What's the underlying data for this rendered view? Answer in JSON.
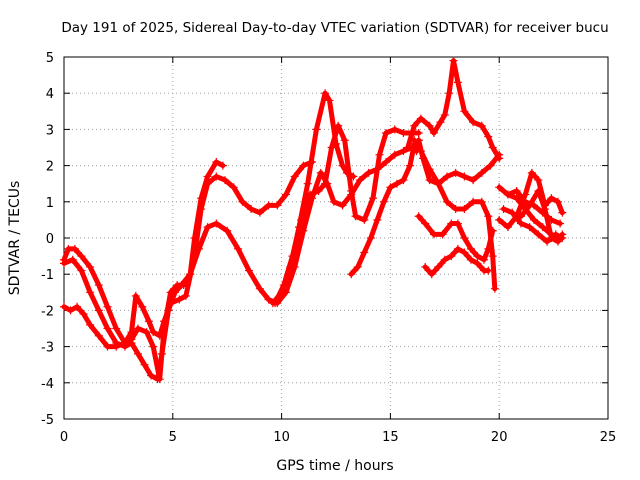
{
  "chart_data": {
    "type": "scatter",
    "title": "Day 191 of 2025, Sidereal Day-to-day VTEC variation (SDTVAR) for receiver bucu",
    "xlabel": "GPS time / hours",
    "ylabel": "SDTVAR / TECUs",
    "xlim": [
      0,
      25
    ],
    "ylim": [
      -5,
      5
    ],
    "x_ticks": [
      0,
      5,
      10,
      15,
      20,
      25
    ],
    "y_ticks": [
      -5,
      -4,
      -3,
      -2,
      -1,
      0,
      1,
      2,
      3,
      4,
      5
    ],
    "grid": true,
    "marker": "+",
    "color": "#ff0000",
    "series": [
      {
        "points": [
          [
            0.0,
            -0.6
          ],
          [
            0.2,
            -0.3
          ],
          [
            0.5,
            -0.3
          ],
          [
            0.8,
            -0.5
          ],
          [
            1.2,
            -0.8
          ],
          [
            1.6,
            -1.3
          ],
          [
            2.0,
            -1.9
          ],
          [
            2.4,
            -2.5
          ],
          [
            2.8,
            -2.9
          ],
          [
            3.1,
            -2.8
          ],
          [
            3.4,
            -2.5
          ],
          [
            3.8,
            -2.6
          ],
          [
            4.1,
            -3.0
          ],
          [
            4.4,
            -3.9
          ],
          [
            4.6,
            -2.5
          ],
          [
            4.9,
            -1.5
          ],
          [
            5.2,
            -1.3
          ],
          [
            5.5,
            -1.3
          ],
          [
            5.8,
            -1.0
          ],
          [
            6.0,
            0.0
          ],
          [
            6.3,
            1.1
          ],
          [
            6.6,
            1.7
          ],
          [
            7.0,
            2.1
          ],
          [
            7.3,
            2.0
          ]
        ]
      },
      {
        "points": [
          [
            0.0,
            -1.9
          ],
          [
            0.3,
            -2.0
          ],
          [
            0.6,
            -1.9
          ],
          [
            0.9,
            -2.1
          ],
          [
            1.2,
            -2.4
          ],
          [
            1.6,
            -2.7
          ],
          [
            2.0,
            -3.0
          ],
          [
            2.4,
            -3.0
          ],
          [
            2.8,
            -2.9
          ],
          [
            3.1,
            -2.6
          ],
          [
            3.3,
            -1.6
          ],
          [
            3.6,
            -1.9
          ],
          [
            3.9,
            -2.3
          ],
          [
            4.1,
            -2.6
          ],
          [
            4.4,
            -2.7
          ],
          [
            4.6,
            -2.3
          ],
          [
            4.9,
            -1.8
          ],
          [
            5.3,
            -1.7
          ],
          [
            5.6,
            -1.6
          ],
          [
            6.0,
            -0.5
          ],
          [
            6.3,
            0.8
          ],
          [
            6.6,
            1.5
          ],
          [
            7.0,
            1.7
          ],
          [
            7.4,
            1.6
          ],
          [
            7.8,
            1.4
          ],
          [
            8.2,
            1.0
          ],
          [
            8.6,
            0.8
          ],
          [
            9.0,
            0.7
          ],
          [
            9.4,
            0.9
          ],
          [
            9.8,
            0.9
          ],
          [
            10.2,
            1.2
          ],
          [
            10.6,
            1.7
          ],
          [
            11.0,
            2.0
          ],
          [
            11.4,
            2.1
          ]
        ]
      },
      {
        "points": [
          [
            0.0,
            -0.7
          ],
          [
            0.4,
            -0.6
          ],
          [
            0.8,
            -0.9
          ],
          [
            1.2,
            -1.5
          ],
          [
            1.6,
            -2.0
          ],
          [
            2.0,
            -2.5
          ],
          [
            2.4,
            -2.9
          ],
          [
            2.8,
            -3.0
          ],
          [
            3.1,
            -2.9
          ],
          [
            3.4,
            -3.2
          ],
          [
            3.7,
            -3.5
          ],
          [
            4.0,
            -3.8
          ],
          [
            4.3,
            -3.9
          ],
          [
            4.5,
            -3.2
          ],
          [
            4.8,
            -2.0
          ],
          [
            5.1,
            -1.5
          ],
          [
            5.4,
            -1.3
          ],
          [
            5.8,
            -1.0
          ],
          [
            6.2,
            -0.3
          ],
          [
            6.6,
            0.3
          ],
          [
            7.0,
            0.4
          ],
          [
            7.5,
            0.2
          ],
          [
            8.0,
            -0.3
          ],
          [
            8.5,
            -0.9
          ],
          [
            9.0,
            -1.4
          ],
          [
            9.4,
            -1.7
          ],
          [
            9.8,
            -1.8
          ],
          [
            10.2,
            -1.5
          ],
          [
            10.6,
            -0.8
          ],
          [
            11.0,
            0.2
          ],
          [
            11.4,
            1.1
          ],
          [
            11.8,
            1.8
          ],
          [
            12.1,
            1.5
          ],
          [
            12.4,
            1.0
          ],
          [
            12.8,
            0.9
          ],
          [
            13.2,
            1.2
          ],
          [
            13.6,
            1.6
          ],
          [
            14.0,
            1.8
          ],
          [
            14.4,
            1.9
          ],
          [
            14.8,
            2.1
          ],
          [
            15.2,
            2.3
          ],
          [
            15.6,
            2.4
          ],
          [
            16.0,
            2.5
          ],
          [
            16.2,
            2.4
          ]
        ]
      },
      {
        "points": [
          [
            9.6,
            -1.8
          ],
          [
            10.0,
            -1.5
          ],
          [
            10.4,
            -0.8
          ],
          [
            10.8,
            0.3
          ],
          [
            11.2,
            1.5
          ],
          [
            11.6,
            3.0
          ],
          [
            12.0,
            4.0
          ],
          [
            12.2,
            3.8
          ],
          [
            12.5,
            2.6
          ],
          [
            12.8,
            2.0
          ],
          [
            13.0,
            1.8
          ],
          [
            13.3,
            1.7
          ]
        ]
      },
      {
        "points": [
          [
            9.7,
            -1.8
          ],
          [
            10.1,
            -1.3
          ],
          [
            10.5,
            -0.5
          ],
          [
            10.9,
            0.5
          ],
          [
            11.3,
            1.2
          ],
          [
            11.7,
            1.3
          ],
          [
            12.0,
            1.5
          ],
          [
            12.3,
            2.5
          ],
          [
            12.6,
            3.1
          ],
          [
            12.9,
            2.7
          ],
          [
            13.2,
            1.3
          ],
          [
            13.4,
            0.6
          ],
          [
            13.8,
            0.5
          ],
          [
            14.2,
            1.1
          ],
          [
            14.5,
            2.3
          ],
          [
            14.8,
            2.9
          ],
          [
            15.2,
            3.0
          ],
          [
            15.6,
            2.9
          ],
          [
            16.0,
            2.9
          ],
          [
            16.3,
            2.9
          ]
        ]
      },
      {
        "points": [
          [
            13.2,
            -1.0
          ],
          [
            13.5,
            -0.8
          ],
          [
            13.8,
            -0.4
          ],
          [
            14.1,
            0.0
          ],
          [
            14.4,
            0.5
          ],
          [
            14.7,
            1.0
          ],
          [
            15.0,
            1.4
          ],
          [
            15.3,
            1.5
          ],
          [
            15.6,
            1.6
          ],
          [
            15.9,
            2.0
          ],
          [
            16.1,
            2.6
          ],
          [
            16.3,
            2.7
          ]
        ]
      },
      {
        "points": [
          [
            16.3,
            2.7
          ],
          [
            16.5,
            2.2
          ],
          [
            16.8,
            1.6
          ],
          [
            17.2,
            1.5
          ],
          [
            17.6,
            1.7
          ],
          [
            18.0,
            1.8
          ],
          [
            18.4,
            1.7
          ],
          [
            18.8,
            1.6
          ],
          [
            19.2,
            1.8
          ],
          [
            19.6,
            2.0
          ],
          [
            20.0,
            2.3
          ]
        ]
      },
      {
        "points": [
          [
            15.8,
            2.5
          ],
          [
            16.1,
            3.1
          ],
          [
            16.4,
            3.3
          ],
          [
            16.8,
            3.1
          ],
          [
            17.0,
            2.9
          ],
          [
            17.3,
            3.2
          ],
          [
            17.5,
            3.4
          ],
          [
            17.7,
            4.0
          ],
          [
            17.9,
            4.9
          ],
          [
            18.1,
            4.3
          ],
          [
            18.4,
            3.5
          ],
          [
            18.8,
            3.2
          ],
          [
            19.2,
            3.1
          ],
          [
            19.5,
            2.8
          ],
          [
            19.7,
            2.5
          ],
          [
            20.0,
            2.2
          ]
        ]
      },
      {
        "points": [
          [
            16.1,
            2.7
          ],
          [
            16.4,
            2.4
          ],
          [
            16.8,
            1.9
          ],
          [
            17.2,
            1.5
          ],
          [
            17.6,
            1.0
          ],
          [
            18.0,
            0.8
          ],
          [
            18.4,
            0.8
          ],
          [
            18.8,
            1.0
          ],
          [
            19.2,
            1.0
          ],
          [
            19.5,
            0.6
          ],
          [
            19.7,
            -0.5
          ],
          [
            19.8,
            -1.4
          ]
        ]
      },
      {
        "points": [
          [
            16.3,
            0.6
          ],
          [
            16.6,
            0.4
          ],
          [
            17.0,
            0.1
          ],
          [
            17.4,
            0.1
          ],
          [
            17.8,
            0.4
          ],
          [
            18.1,
            0.4
          ],
          [
            18.4,
            0.0
          ],
          [
            18.7,
            -0.3
          ],
          [
            19.0,
            -0.5
          ],
          [
            19.3,
            -0.6
          ],
          [
            19.5,
            -0.3
          ],
          [
            19.7,
            0.2
          ]
        ]
      },
      {
        "points": [
          [
            16.6,
            -0.8
          ],
          [
            16.9,
            -1.0
          ],
          [
            17.2,
            -0.8
          ],
          [
            17.5,
            -0.6
          ],
          [
            17.8,
            -0.5
          ],
          [
            18.1,
            -0.3
          ],
          [
            18.4,
            -0.4
          ],
          [
            18.7,
            -0.6
          ],
          [
            19.0,
            -0.7
          ],
          [
            19.3,
            -0.9
          ],
          [
            19.5,
            -0.9
          ]
        ]
      },
      {
        "points": [
          [
            20.0,
            1.4
          ],
          [
            20.4,
            1.2
          ],
          [
            20.8,
            1.3
          ],
          [
            21.2,
            1.0
          ],
          [
            21.6,
            0.9
          ],
          [
            22.0,
            0.7
          ],
          [
            22.4,
            0.5
          ],
          [
            22.8,
            0.4
          ]
        ]
      },
      {
        "points": [
          [
            20.0,
            0.5
          ],
          [
            20.4,
            0.3
          ],
          [
            20.8,
            0.6
          ],
          [
            21.2,
            1.2
          ],
          [
            21.5,
            1.8
          ],
          [
            21.8,
            1.6
          ],
          [
            22.1,
            0.9
          ],
          [
            22.4,
            1.1
          ],
          [
            22.7,
            1.0
          ],
          [
            22.9,
            0.7
          ]
        ]
      },
      {
        "points": [
          [
            20.2,
            0.8
          ],
          [
            20.6,
            0.7
          ],
          [
            21.0,
            0.4
          ],
          [
            21.4,
            0.3
          ],
          [
            21.8,
            0.1
          ],
          [
            22.2,
            -0.1
          ],
          [
            22.6,
            0.1
          ],
          [
            22.9,
            0.0
          ]
        ]
      },
      {
        "points": [
          [
            20.4,
            1.2
          ],
          [
            20.8,
            1.1
          ],
          [
            21.2,
            0.8
          ],
          [
            21.6,
            0.5
          ],
          [
            22.0,
            0.3
          ],
          [
            22.4,
            0.1
          ],
          [
            22.8,
            0.0
          ]
        ]
      },
      {
        "points": [
          [
            21.0,
            0.6
          ],
          [
            21.4,
            0.9
          ],
          [
            21.8,
            1.3
          ],
          [
            22.1,
            0.8
          ],
          [
            22.4,
            0.0
          ],
          [
            22.7,
            -0.1
          ],
          [
            22.9,
            0.1
          ]
        ]
      }
    ]
  }
}
